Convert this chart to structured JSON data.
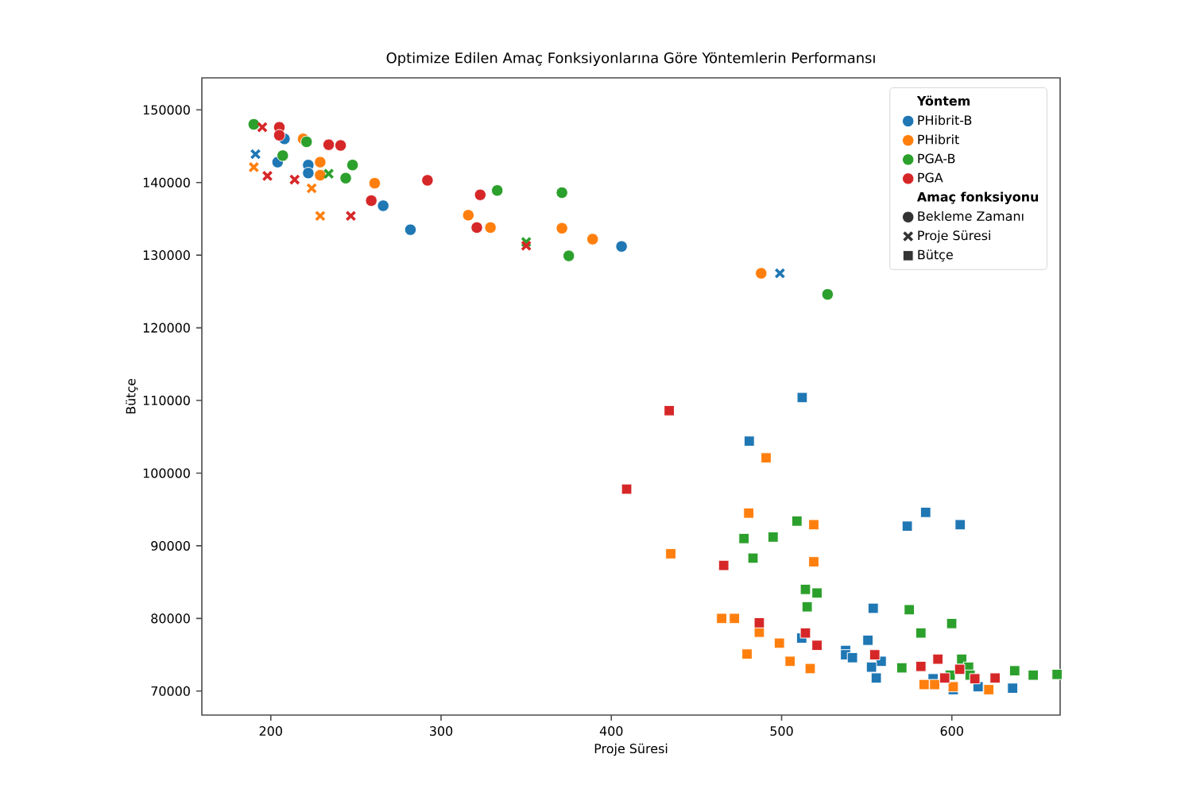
{
  "chart_data": {
    "type": "scatter",
    "title": "Optimize Edilen Amaç Fonksiyonlarına Göre Yöntemlerin Performansı",
    "xlabel": "Proje Süresi",
    "ylabel": "Bütçe",
    "legend_title": [
      "Yöntem",
      "Amaç fonksiyonu"
    ],
    "legend": "top right",
    "grid": false,
    "xlim": [
      159.5,
      663.6
    ],
    "ylim": [
      66700,
      154400
    ],
    "xticks": [
      200,
      300,
      400,
      500,
      600
    ],
    "yticks": [
      70000,
      80000,
      90000,
      100000,
      110000,
      120000,
      130000,
      140000,
      150000
    ],
    "series": [
      {
        "name": "PHibrit-B",
        "color": "#1f77b4",
        "marker": "circle",
        "x": [
          204,
          208,
          222,
          222,
          266,
          282,
          406
        ],
        "values": [
          142800,
          146000,
          142400,
          141300,
          136800,
          133500,
          131200
        ]
      },
      {
        "name": "PHibrit",
        "color": "#ff7f0e",
        "marker": "circle",
        "x": [
          219,
          229,
          229,
          261,
          316,
          329,
          371,
          389,
          488
        ],
        "values": [
          146000,
          142800,
          141000,
          139900,
          135500,
          133800,
          133700,
          132200,
          127500
        ]
      },
      {
        "name": "PGA-B",
        "color": "#2ca02c",
        "marker": "circle",
        "x": [
          190,
          207,
          221,
          248,
          244,
          333,
          371,
          375,
          527
        ],
        "values": [
          148000,
          143700,
          145600,
          142400,
          140600,
          138900,
          138600,
          129900,
          124600
        ]
      },
      {
        "name": "PGA",
        "color": "#d62728",
        "marker": "circle",
        "x": [
          205,
          205,
          234,
          241,
          292,
          323,
          321,
          259
        ],
        "values": [
          147600,
          146500,
          145200,
          145100,
          140300,
          138300,
          133800,
          137500
        ]
      },
      {
        "name": "Bekleme Zamanı",
        "color": "#333333",
        "marker": "circle"
      },
      {
        "name": "Proje Süresi",
        "color": "#333333",
        "marker": "cross"
      },
      {
        "name": "Bütçe",
        "color": "#333333",
        "marker": "square"
      },
      {
        "color": "#1f77b4",
        "marker": "cross",
        "x": [
          191,
          499
        ],
        "values": [
          143900,
          127500
        ]
      },
      {
        "color": "#ff7f0e",
        "marker": "cross",
        "x": [
          190,
          224,
          229
        ],
        "values": [
          142100,
          139200,
          135400
        ]
      },
      {
        "color": "#2ca02c",
        "marker": "cross",
        "x": [
          234,
          350
        ],
        "values": [
          141200,
          131800
        ]
      },
      {
        "color": "#d62728",
        "marker": "cross",
        "x": [
          195,
          198,
          214,
          247,
          350
        ],
        "values": [
          147600,
          140900,
          140400,
          135400,
          131300
        ]
      },
      {
        "color": "#1f77b4",
        "marker": "square",
        "x": [
          512.1,
          481,
          584.6,
          573.8,
          604.9,
          553.8,
          511.8,
          550.7,
          537.6,
          537.6,
          541.6,
          558.5,
          552.8,
          555.6,
          589,
          600.8,
          615.4,
          635.7
        ],
        "values": [
          110400,
          104400,
          94600,
          92700,
          92900,
          81400,
          77300,
          77000,
          75600,
          75000,
          74600,
          74100,
          73300,
          71800,
          71700,
          70200,
          70600,
          70400
        ]
      },
      {
        "color": "#ff7f0e",
        "marker": "square",
        "x": [
          490.9,
          480.7,
          518.9,
          434.9,
          518.9,
          464.8,
          472.3,
          486.9,
          498.7,
          479.7,
          505,
          516.8,
          583.7,
          600.8,
          621.7,
          589.9
        ],
        "values": [
          102100,
          94500,
          92900,
          88900,
          87800,
          80000,
          80000,
          78100,
          76600,
          75100,
          74100,
          73100,
          70900,
          70600,
          70200,
          70900
        ]
      },
      {
        "color": "#2ca02c",
        "marker": "square",
        "x": [
          509,
          477.9,
          495,
          483.2,
          514,
          520.8,
          515,
          575,
          599.9,
          581.8,
          570.6,
          605.8,
          599,
          609.8,
          610.7,
          636.9,
          647.8,
          661.8
        ],
        "values": [
          93400,
          91000,
          91200,
          88300,
          84000,
          83500,
          81600,
          81200,
          79300,
          78000,
          73200,
          74400,
          72200,
          73300,
          72200,
          72800,
          72200,
          72300
        ]
      },
      {
        "color": "#d62728",
        "marker": "square",
        "x": [
          434,
          409,
          466,
          486.9,
          514,
          520.8,
          554.7,
          591.8,
          581.8,
          604.6,
          595.8,
          613.5,
          625.4
        ],
        "values": [
          108600,
          97800,
          87300,
          79400,
          78000,
          76300,
          75000,
          74400,
          73400,
          73000,
          71800,
          71700,
          71800
        ]
      }
    ]
  }
}
